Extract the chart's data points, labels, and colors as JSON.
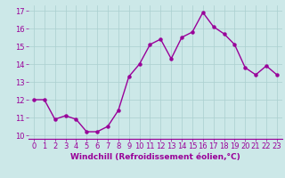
{
  "x": [
    0,
    1,
    2,
    3,
    4,
    5,
    6,
    7,
    8,
    9,
    10,
    11,
    12,
    13,
    14,
    15,
    16,
    17,
    18,
    19,
    20,
    21,
    22,
    23
  ],
  "y": [
    12.0,
    12.0,
    10.9,
    11.1,
    10.9,
    10.2,
    10.2,
    10.5,
    11.4,
    13.3,
    14.0,
    15.1,
    15.4,
    14.3,
    15.5,
    15.8,
    16.9,
    16.1,
    15.7,
    15.1,
    13.8,
    13.4,
    13.9,
    13.4
  ],
  "line_color": "#990099",
  "marker": "o",
  "markersize": 2.2,
  "linewidth": 1.0,
  "xlabel": "Windchill (Refroidissement éolien,°C)",
  "xlabel_fontsize": 6.5,
  "ylabel_ticks": [
    10,
    11,
    12,
    13,
    14,
    15,
    16,
    17
  ],
  "xlim": [
    -0.5,
    23.5
  ],
  "ylim": [
    9.8,
    17.3
  ],
  "bg_color": "#cce8e8",
  "grid_color": "#aacfcf",
  "tick_fontsize": 6.0
}
